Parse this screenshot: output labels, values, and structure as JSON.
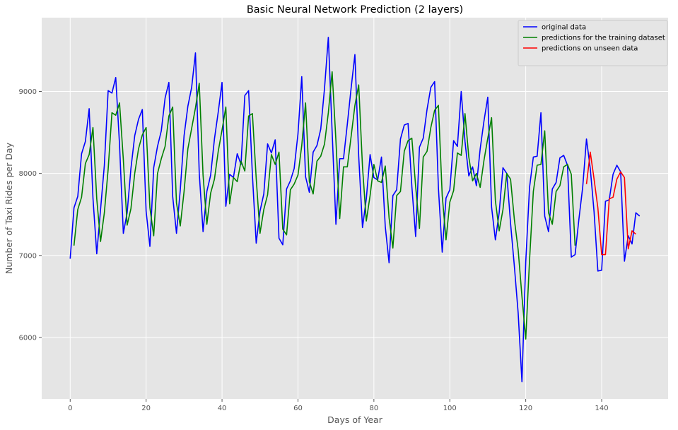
{
  "chart_data": {
    "type": "line",
    "title": "Basic Neural Network Prediction (2 layers)",
    "xlabel": "Days of Year",
    "ylabel": "Number of Taxi Rides per Day",
    "xlim": [
      -7.5,
      157.5
    ],
    "ylim": [
      5250,
      9900
    ],
    "xticks": [
      0,
      20,
      40,
      60,
      80,
      100,
      120,
      140
    ],
    "yticks": [
      6000,
      7000,
      8000,
      9000
    ],
    "grid": true,
    "legend_position": "top-right",
    "series": [
      {
        "name": "original data",
        "color": "#0000ff",
        "x_start": 0,
        "values": [
          6960,
          7580,
          7720,
          8240,
          8390,
          8790,
          7700,
          7020,
          7560,
          8100,
          9010,
          8980,
          9170,
          8350,
          7270,
          7520,
          8060,
          8460,
          8660,
          8780,
          7540,
          7110,
          8070,
          8330,
          8520,
          8920,
          9110,
          7720,
          7270,
          7800,
          8460,
          8820,
          9050,
          9470,
          8000,
          7290,
          7780,
          7980,
          8420,
          8750,
          9110,
          7600,
          7990,
          7950,
          8240,
          8110,
          8950,
          9010,
          7980,
          7150,
          7540,
          7750,
          8360,
          8250,
          8410,
          7210,
          7130,
          7810,
          7910,
          8060,
          8480,
          9180,
          7960,
          7770,
          8260,
          8340,
          8540,
          9040,
          9660,
          8510,
          7380,
          8180,
          8180,
          8600,
          9040,
          9450,
          8210,
          7340,
          7690,
          8230,
          7950,
          7920,
          8200,
          7350,
          6910,
          7730,
          7800,
          8420,
          8590,
          8610,
          7840,
          7230,
          8320,
          8430,
          8780,
          9050,
          9120,
          7820,
          7040,
          7700,
          7800,
          8400,
          8330,
          9000,
          8390,
          7970,
          8080,
          7850,
          8300,
          8640,
          8930,
          7590,
          7190,
          7520,
          8070,
          8000,
          7390,
          6870,
          6300,
          5460,
          6920,
          7830,
          8200,
          8210,
          8740,
          7480,
          7290,
          7810,
          7890,
          8190,
          8220,
          8100,
          6980,
          7010,
          7440,
          7830,
          8420,
          8060,
          7530,
          6810,
          6820,
          7660,
          7680,
          7990,
          8100,
          8020,
          6930,
          7240,
          7140,
          7520,
          7480
        ]
      },
      {
        "name": "predictions for the training dataset",
        "color": "#008000",
        "x_start": 1,
        "values": [
          7120,
          7560,
          7710,
          8120,
          8230,
          8560,
          7690,
          7170,
          7520,
          8050,
          8740,
          8710,
          8860,
          8170,
          7370,
          7570,
          8000,
          8300,
          8470,
          8560,
          7580,
          7240,
          8000,
          8180,
          8330,
          8700,
          8810,
          7640,
          7360,
          7780,
          8300,
          8550,
          8800,
          9100,
          7980,
          7380,
          7760,
          7930,
          8270,
          8530,
          8810,
          7630,
          7950,
          7900,
          8150,
          8030,
          8700,
          8730,
          7940,
          7270,
          7560,
          7740,
          8230,
          8110,
          8260,
          7320,
          7250,
          7800,
          7870,
          7980,
          8340,
          8860,
          7900,
          7750,
          8150,
          8210,
          8360,
          8740,
          9240,
          8400,
          7450,
          8080,
          8080,
          8450,
          8830,
          9080,
          8080,
          7420,
          7730,
          8110,
          7910,
          7890,
          8090,
          7460,
          7090,
          7730,
          7780,
          8270,
          8400,
          8430,
          7840,
          7330,
          8200,
          8270,
          8560,
          8770,
          8830,
          7730,
          7190,
          7650,
          7790,
          8250,
          8220,
          8730,
          8200,
          7910,
          8000,
          7830,
          8160,
          8430,
          8680,
          7670,
          7300,
          7560,
          8000,
          7930,
          7440,
          7070,
          6500,
          5980,
          6940,
          7780,
          8100,
          8110,
          8520,
          7520,
          7380,
          7780,
          7850,
          8080,
          8110,
          7990,
          7120
        ]
      },
      {
        "name": "predictions on unseen data",
        "color": "#ff0000",
        "x_start": 136,
        "values": [
          7870,
          8260,
          7930,
          7580,
          7010,
          7010,
          7690,
          7710,
          7930,
          8020,
          7950,
          7080,
          7300,
          7260
        ]
      }
    ]
  }
}
